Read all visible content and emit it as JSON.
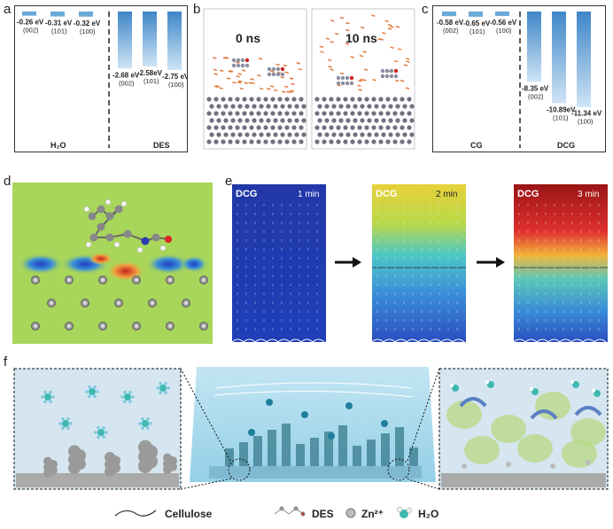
{
  "panels": {
    "a": {
      "label": "a",
      "h2o_label": "H₂O",
      "des_label": "DES",
      "h2o": [
        {
          "energy": "-0.26 eV",
          "facet": "(002)",
          "value": -0.26
        },
        {
          "energy": "-0.31 eV",
          "facet": "(101)",
          "value": -0.31
        },
        {
          "energy": "-0.32 eV",
          "facet": "(100)",
          "value": -0.32
        }
      ],
      "des": [
        {
          "energy": "-2.68 eV",
          "facet": "(002)",
          "value": -2.68
        },
        {
          "energy": "-2.58eV",
          "facet": "(101)",
          "value": -2.58
        },
        {
          "energy": "-2.75 eV",
          "facet": "(100)",
          "value": -2.75
        }
      ]
    },
    "b": {
      "label": "b",
      "t0": "0 ns",
      "t10": "10 ns"
    },
    "c": {
      "label": "c",
      "cg_label": "CG",
      "dcg_label": "DCG",
      "cg": [
        {
          "energy": "-0.58 eV",
          "facet": "(002)",
          "value": -0.58
        },
        {
          "energy": "-0.65 eV",
          "facet": "(101)",
          "value": -0.65
        },
        {
          "energy": "-0.56 eV",
          "facet": "(100)",
          "value": -0.56
        }
      ],
      "dcg": [
        {
          "energy": "-8.35 eV",
          "facet": "(002)",
          "value": -8.35
        },
        {
          "energy": "-10.89eV",
          "facet": "(101)",
          "value": -10.89
        },
        {
          "energy": "-11.34 eV",
          "facet": "(100)",
          "value": -11.34
        }
      ]
    },
    "d": {
      "label": "d"
    },
    "e": {
      "label": "e",
      "frames": [
        {
          "name": "DCG",
          "time": "1 min"
        },
        {
          "name": "DCG",
          "time": "2 min"
        },
        {
          "name": "DCG",
          "time": "3 min"
        }
      ]
    },
    "f": {
      "label": "f"
    }
  },
  "legend": {
    "cellulose": "Cellulose",
    "des": "DES",
    "zn": "Zn²⁺",
    "h2o": "H₂O"
  },
  "colors": {
    "bar_light": "#d6e9f7",
    "bar_dark": "#4a90cd",
    "field_green": "#a8d65a",
    "bg_blue": "#cfe6f3"
  }
}
